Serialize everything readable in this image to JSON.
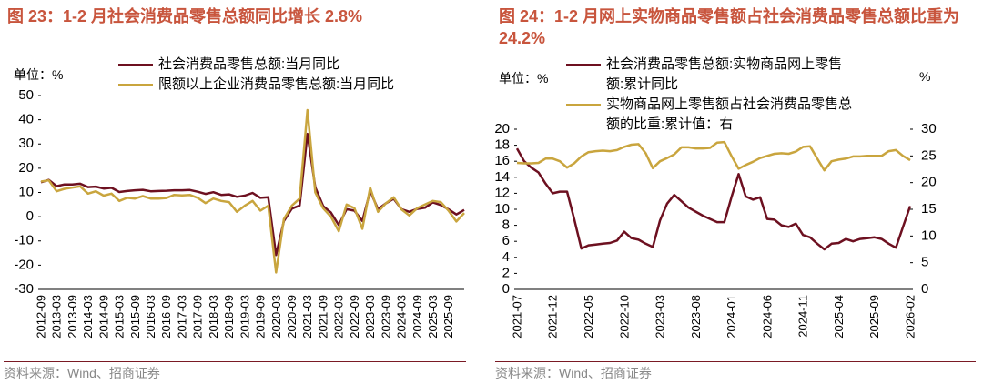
{
  "chart_data": [
    {
      "type": "line",
      "title": "图 23：1-2 月社会消费品零售总额同比增长 2.8%",
      "unit": "单位：%",
      "source": "资料来源：Wind、招商证券",
      "categories": [
        "2012-09",
        null,
        "2013-03",
        null,
        "2013-09",
        null,
        "2014-03",
        null,
        "2014-09",
        null,
        "2015-03",
        null,
        "2015-09",
        null,
        "2016-03",
        null,
        "2016-09",
        null,
        "2017-03",
        null,
        "2017-09",
        null,
        "2018-03",
        null,
        "2018-09",
        null,
        "2019-03",
        null,
        "2019-09",
        null,
        "2020-03",
        null,
        "2020-09",
        null,
        "2021-03",
        null,
        "2021-09",
        null,
        "2022-03",
        null,
        "2022-09",
        null,
        "2023-03",
        null,
        "2023-09",
        null,
        "2024-03",
        null,
        "2024-09",
        null,
        "2025-03",
        null,
        "2025-09",
        null,
        null
      ],
      "series": [
        {
          "name": "社会消费品零售总额:当月同比",
          "color": "#6d1020",
          "values": [
            14.2,
            15.2,
            12.6,
            13.3,
            13.3,
            13.6,
            12.2,
            12.4,
            11.6,
            11.9,
            10.2,
            10.6,
            10.9,
            11.1,
            10.5,
            10.6,
            10.7,
            10.9,
            10.9,
            11.0,
            10.3,
            9.4,
            10.1,
            9.0,
            9.2,
            8.2,
            8.7,
            9.8,
            7.8,
            8.0,
            -15.8,
            -1.8,
            3.3,
            4.6,
            34.2,
            12.1,
            4.4,
            1.7,
            -3.5,
            3.1,
            2.5,
            -1.8,
            10.6,
            3.1,
            5.5,
            7.4,
            3.1,
            2.0,
            3.2,
            3.7,
            5.9,
            4.8,
            3.0,
            0.9,
            2.8
          ]
        },
        {
          "name": "限额以上企业消费品零售总额:当月同比",
          "color": "#c9a53e",
          "values": [
            14.5,
            15.0,
            10.5,
            11.5,
            12.0,
            12.5,
            9.5,
            10.5,
            8.7,
            9.5,
            6.5,
            7.8,
            7.5,
            8.5,
            7.5,
            7.5,
            7.7,
            9.0,
            8.8,
            9.0,
            7.8,
            5.6,
            7.5,
            6.5,
            6.0,
            2.0,
            4.5,
            6.5,
            2.5,
            4.5,
            -23,
            -1.0,
            4.5,
            7.5,
            44,
            10,
            3.5,
            0,
            -6,
            5,
            3.5,
            -5,
            12,
            2,
            5.5,
            8,
            3,
            0.5,
            3.5,
            5,
            6.5,
            6,
            2.5,
            -2,
            1.5
          ]
        }
      ],
      "ylim": [
        -30,
        50
      ],
      "yticks": [
        -30,
        -20,
        -10,
        0,
        10,
        20,
        30,
        40,
        50
      ]
    },
    {
      "type": "line",
      "title": "图 24：1-2 月网上实物商品零售额占社会消费品零售总额比重为 24.2%",
      "unit": "单位：%",
      "y2_unit": "%",
      "source": "资料来源：Wind、招商证券",
      "categories": [
        "2021-07",
        null,
        null,
        null,
        null,
        "2021-12",
        null,
        null,
        null,
        null,
        "2022-05",
        null,
        null,
        null,
        null,
        "2022-10",
        null,
        null,
        null,
        null,
        "2023-03",
        null,
        null,
        null,
        null,
        "2023-08",
        null,
        null,
        null,
        null,
        "2024-01",
        null,
        null,
        null,
        null,
        "2024-06",
        null,
        null,
        null,
        null,
        "2024-11",
        null,
        null,
        null,
        null,
        "2025-04",
        null,
        null,
        null,
        null,
        "2025-09",
        null,
        null,
        null,
        null,
        "2026-02"
      ],
      "series": [
        {
          "name": "社会消费品零售总额:实物商品网上零售额:累计同比",
          "color": "#6d1020",
          "values": [
            17.6,
            16.0,
            15.2,
            14.6,
            13.2,
            12.0,
            12.2,
            12.2,
            8.8,
            5.1,
            5.5,
            5.6,
            5.7,
            5.8,
            6.1,
            7.2,
            6.4,
            6.2,
            5.7,
            5.3,
            8.6,
            10.7,
            11.8,
            11.0,
            10.2,
            9.7,
            9.2,
            8.8,
            8.4,
            8.4,
            11.5,
            14.4,
            11.6,
            11.2,
            11.5,
            8.8,
            8.7,
            8.0,
            7.8,
            8.2,
            6.8,
            6.5,
            5.7,
            5.0,
            5.7,
            5.8,
            6.3,
            6.0,
            6.3,
            6.4,
            6.5,
            6.3,
            5.7,
            5.2,
            7.8,
            10.4
          ]
        },
        {
          "name": "实物商品网上零售额占社会消费品零售总额的比重:累计值：右",
          "color": "#c9a53e",
          "axis": "y2",
          "values": [
            23.7,
            23.6,
            23.6,
            23.7,
            24.5,
            24.5,
            24.0,
            22.8,
            23.6,
            24.9,
            25.7,
            25.9,
            26.0,
            25.9,
            26.1,
            26.7,
            27.1,
            27.2,
            25.5,
            22.7,
            24.0,
            24.6,
            25.3,
            26.6,
            26.6,
            26.4,
            26.4,
            26.5,
            27.5,
            27.6,
            25.0,
            22.6,
            23.3,
            23.9,
            24.6,
            25.0,
            25.4,
            25.5,
            25.4,
            25.8,
            26.7,
            26.8,
            24.5,
            22.3,
            24.0,
            24.3,
            24.5,
            24.9,
            24.9,
            25.0,
            25.0,
            25.0,
            25.9,
            26.1,
            25.0,
            24.2
          ]
        }
      ],
      "ylim": [
        0,
        20
      ],
      "yticks": [
        0,
        2,
        4,
        6,
        8,
        10,
        12,
        14,
        16,
        18,
        20
      ],
      "y2lim": [
        0,
        30
      ],
      "y2ticks": [
        0,
        5,
        10,
        15,
        20,
        25,
        30
      ]
    }
  ]
}
